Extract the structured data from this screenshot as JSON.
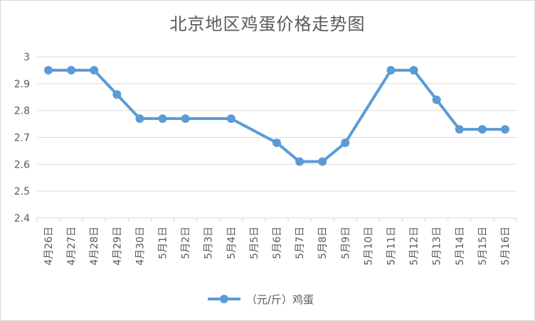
{
  "chart_data": {
    "type": "line",
    "title": "北京地区鸡蛋价格走势图",
    "xlabel": "",
    "ylabel": "",
    "ylim": [
      2.4,
      3.0
    ],
    "yticks": [
      "2.4",
      "2.5",
      "2.6",
      "2.7",
      "2.8",
      "2.9",
      "3"
    ],
    "grid": true,
    "legend_position": "bottom",
    "categories": [
      "4月26日",
      "4月27日",
      "4月28日",
      "4月29日",
      "4月30日",
      "5月1日",
      "5月2日",
      "5月3日",
      "5月4日",
      "5月5日",
      "5月6日",
      "5月7日",
      "5月8日",
      "5月9日",
      "5月10日",
      "5月11日",
      "5月12日",
      "5月13日",
      "5月14日",
      "5月15日",
      "5月16日"
    ],
    "series": [
      {
        "name": "（元/斤）鸡蛋",
        "color": "#5b9bd5",
        "values": [
          2.95,
          2.95,
          2.95,
          2.86,
          2.77,
          2.77,
          2.77,
          null,
          2.77,
          null,
          2.68,
          2.61,
          2.61,
          2.68,
          null,
          2.95,
          2.95,
          2.84,
          2.73,
          2.73,
          2.73
        ]
      }
    ]
  }
}
